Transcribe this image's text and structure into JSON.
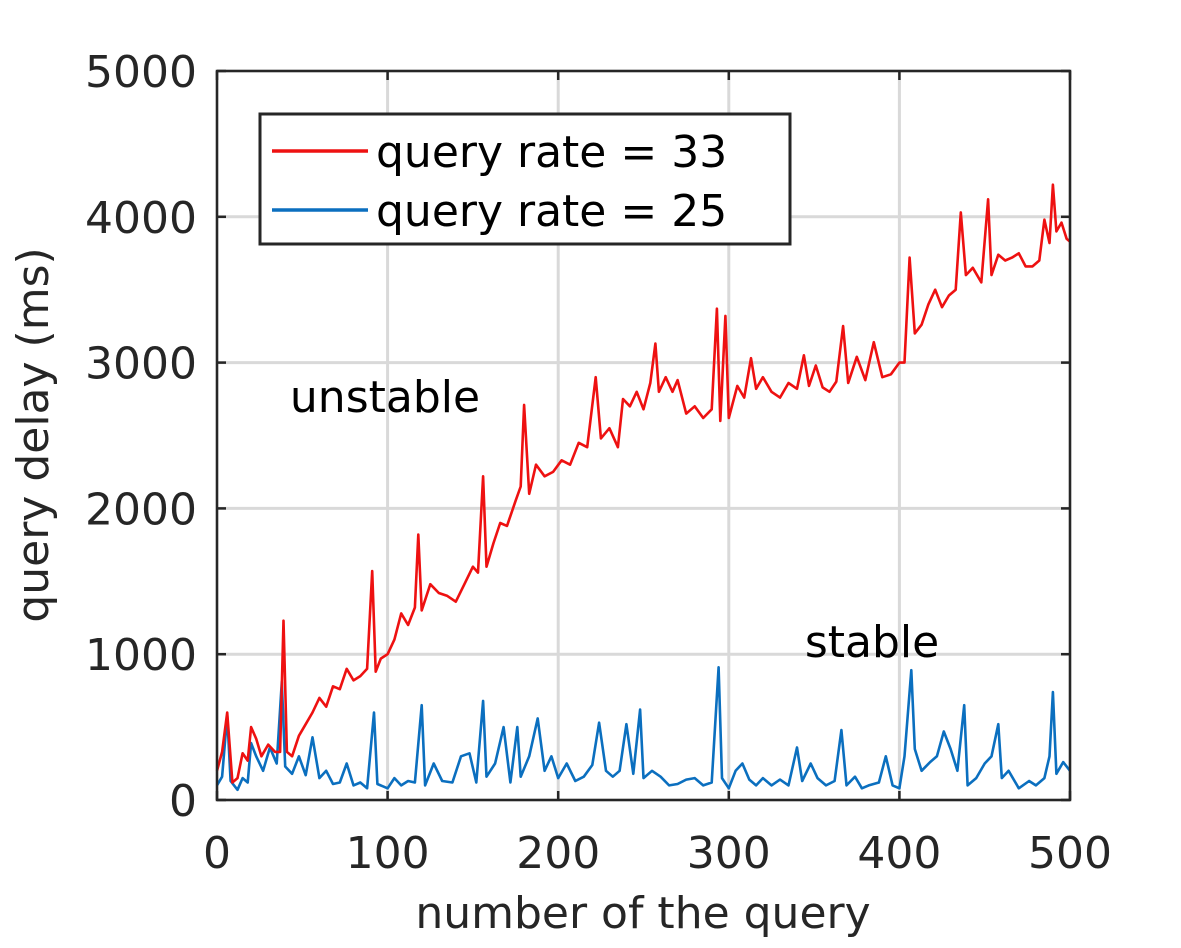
{
  "chart_data": {
    "type": "line",
    "title": "",
    "xlabel": "number of the query",
    "ylabel": "query delay (ms)",
    "xlim": [
      0,
      500
    ],
    "ylim": [
      0,
      5000
    ],
    "xticks": [
      0,
      100,
      200,
      300,
      400,
      500
    ],
    "yticks": [
      0,
      1000,
      2000,
      3000,
      4000,
      5000
    ],
    "xtick_labels": [
      "0",
      "100",
      "200",
      "300",
      "400",
      "500"
    ],
    "ytick_labels": [
      "0",
      "1000",
      "2000",
      "3000",
      "4000",
      "5000"
    ],
    "grid": true,
    "legend_position": "top-left",
    "annotations": [
      {
        "text": "unstable",
        "x": 100,
        "y": 2750
      },
      {
        "text": "stable",
        "x": 385,
        "y": 1080
      }
    ],
    "series": [
      {
        "name": "query rate = 33",
        "color": "#ee1111",
        "points": [
          [
            0,
            200
          ],
          [
            3,
            330
          ],
          [
            6,
            600
          ],
          [
            9,
            120
          ],
          [
            12,
            150
          ],
          [
            15,
            320
          ],
          [
            18,
            270
          ],
          [
            20,
            500
          ],
          [
            23,
            420
          ],
          [
            26,
            300
          ],
          [
            30,
            380
          ],
          [
            34,
            330
          ],
          [
            37,
            330
          ],
          [
            39,
            1230
          ],
          [
            41,
            330
          ],
          [
            44,
            300
          ],
          [
            48,
            440
          ],
          [
            52,
            520
          ],
          [
            56,
            600
          ],
          [
            60,
            700
          ],
          [
            64,
            640
          ],
          [
            68,
            780
          ],
          [
            72,
            760
          ],
          [
            76,
            900
          ],
          [
            80,
            820
          ],
          [
            84,
            850
          ],
          [
            88,
            900
          ],
          [
            91,
            1570
          ],
          [
            93,
            880
          ],
          [
            96,
            970
          ],
          [
            100,
            1000
          ],
          [
            104,
            1100
          ],
          [
            108,
            1280
          ],
          [
            112,
            1200
          ],
          [
            116,
            1320
          ],
          [
            118,
            1820
          ],
          [
            120,
            1300
          ],
          [
            125,
            1480
          ],
          [
            130,
            1420
          ],
          [
            135,
            1400
          ],
          [
            140,
            1360
          ],
          [
            145,
            1480
          ],
          [
            150,
            1600
          ],
          [
            153,
            1560
          ],
          [
            156,
            2220
          ],
          [
            158,
            1600
          ],
          [
            162,
            1760
          ],
          [
            166,
            1900
          ],
          [
            170,
            1880
          ],
          [
            175,
            2050
          ],
          [
            178,
            2150
          ],
          [
            180,
            2710
          ],
          [
            183,
            2100
          ],
          [
            187,
            2300
          ],
          [
            192,
            2220
          ],
          [
            197,
            2250
          ],
          [
            202,
            2330
          ],
          [
            207,
            2300
          ],
          [
            212,
            2450
          ],
          [
            217,
            2420
          ],
          [
            222,
            2900
          ],
          [
            225,
            2480
          ],
          [
            230,
            2550
          ],
          [
            235,
            2420
          ],
          [
            238,
            2750
          ],
          [
            242,
            2700
          ],
          [
            246,
            2800
          ],
          [
            250,
            2680
          ],
          [
            254,
            2860
          ],
          [
            257,
            3130
          ],
          [
            259,
            2800
          ],
          [
            263,
            2900
          ],
          [
            267,
            2800
          ],
          [
            270,
            2880
          ],
          [
            275,
            2650
          ],
          [
            280,
            2700
          ],
          [
            285,
            2620
          ],
          [
            290,
            2680
          ],
          [
            293,
            3370
          ],
          [
            295,
            2600
          ],
          [
            298,
            3320
          ],
          [
            300,
            2620
          ],
          [
            305,
            2840
          ],
          [
            309,
            2760
          ],
          [
            313,
            3030
          ],
          [
            316,
            2820
          ],
          [
            320,
            2900
          ],
          [
            325,
            2800
          ],
          [
            330,
            2760
          ],
          [
            335,
            2860
          ],
          [
            340,
            2820
          ],
          [
            344,
            3050
          ],
          [
            347,
            2840
          ],
          [
            351,
            2980
          ],
          [
            355,
            2830
          ],
          [
            359,
            2800
          ],
          [
            363,
            2870
          ],
          [
            367,
            3250
          ],
          [
            370,
            2860
          ],
          [
            375,
            3040
          ],
          [
            380,
            2880
          ],
          [
            385,
            3140
          ],
          [
            390,
            2900
          ],
          [
            395,
            2920
          ],
          [
            400,
            3000
          ],
          [
            403,
            3000
          ],
          [
            406,
            3720
          ],
          [
            409,
            3200
          ],
          [
            413,
            3260
          ],
          [
            417,
            3400
          ],
          [
            421,
            3500
          ],
          [
            425,
            3380
          ],
          [
            429,
            3460
          ],
          [
            433,
            3500
          ],
          [
            436,
            4030
          ],
          [
            439,
            3600
          ],
          [
            443,
            3650
          ],
          [
            448,
            3550
          ],
          [
            452,
            4120
          ],
          [
            454,
            3600
          ],
          [
            458,
            3740
          ],
          [
            462,
            3700
          ],
          [
            466,
            3720
          ],
          [
            470,
            3750
          ],
          [
            474,
            3660
          ],
          [
            478,
            3660
          ],
          [
            482,
            3700
          ],
          [
            485,
            3980
          ],
          [
            488,
            3820
          ],
          [
            490,
            4220
          ],
          [
            492,
            3900
          ],
          [
            495,
            3960
          ],
          [
            498,
            3850
          ],
          [
            500,
            3830
          ]
        ]
      },
      {
        "name": "query rate = 25",
        "color": "#0b6fbf",
        "points": [
          [
            0,
            100
          ],
          [
            3,
            160
          ],
          [
            6,
            580
          ],
          [
            8,
            130
          ],
          [
            12,
            70
          ],
          [
            15,
            150
          ],
          [
            18,
            120
          ],
          [
            20,
            390
          ],
          [
            23,
            300
          ],
          [
            27,
            200
          ],
          [
            31,
            360
          ],
          [
            35,
            250
          ],
          [
            38,
            810
          ],
          [
            40,
            230
          ],
          [
            44,
            180
          ],
          [
            48,
            300
          ],
          [
            52,
            170
          ],
          [
            56,
            430
          ],
          [
            60,
            150
          ],
          [
            64,
            200
          ],
          [
            68,
            110
          ],
          [
            72,
            120
          ],
          [
            76,
            250
          ],
          [
            80,
            100
          ],
          [
            84,
            120
          ],
          [
            88,
            80
          ],
          [
            92,
            600
          ],
          [
            94,
            110
          ],
          [
            100,
            80
          ],
          [
            104,
            150
          ],
          [
            108,
            100
          ],
          [
            112,
            130
          ],
          [
            116,
            120
          ],
          [
            120,
            650
          ],
          [
            122,
            100
          ],
          [
            127,
            250
          ],
          [
            132,
            130
          ],
          [
            138,
            120
          ],
          [
            143,
            300
          ],
          [
            148,
            320
          ],
          [
            152,
            120
          ],
          [
            156,
            680
          ],
          [
            158,
            160
          ],
          [
            163,
            250
          ],
          [
            168,
            500
          ],
          [
            172,
            120
          ],
          [
            176,
            500
          ],
          [
            178,
            160
          ],
          [
            183,
            300
          ],
          [
            188,
            560
          ],
          [
            192,
            200
          ],
          [
            196,
            300
          ],
          [
            200,
            150
          ],
          [
            205,
            250
          ],
          [
            210,
            130
          ],
          [
            215,
            160
          ],
          [
            220,
            240
          ],
          [
            224,
            530
          ],
          [
            228,
            200
          ],
          [
            232,
            160
          ],
          [
            236,
            200
          ],
          [
            240,
            520
          ],
          [
            244,
            180
          ],
          [
            248,
            620
          ],
          [
            250,
            150
          ],
          [
            255,
            200
          ],
          [
            260,
            160
          ],
          [
            265,
            100
          ],
          [
            270,
            110
          ],
          [
            275,
            140
          ],
          [
            280,
            150
          ],
          [
            285,
            100
          ],
          [
            290,
            120
          ],
          [
            294,
            910
          ],
          [
            296,
            150
          ],
          [
            300,
            80
          ],
          [
            304,
            200
          ],
          [
            308,
            250
          ],
          [
            312,
            140
          ],
          [
            316,
            100
          ],
          [
            320,
            150
          ],
          [
            325,
            100
          ],
          [
            330,
            140
          ],
          [
            335,
            100
          ],
          [
            340,
            360
          ],
          [
            343,
            130
          ],
          [
            348,
            250
          ],
          [
            352,
            150
          ],
          [
            357,
            100
          ],
          [
            362,
            130
          ],
          [
            366,
            480
          ],
          [
            369,
            100
          ],
          [
            374,
            160
          ],
          [
            378,
            80
          ],
          [
            382,
            100
          ],
          [
            388,
            120
          ],
          [
            392,
            300
          ],
          [
            396,
            100
          ],
          [
            400,
            80
          ],
          [
            403,
            300
          ],
          [
            407,
            890
          ],
          [
            409,
            350
          ],
          [
            413,
            200
          ],
          [
            418,
            260
          ],
          [
            422,
            300
          ],
          [
            426,
            470
          ],
          [
            430,
            350
          ],
          [
            434,
            200
          ],
          [
            438,
            650
          ],
          [
            440,
            100
          ],
          [
            445,
            150
          ],
          [
            450,
            250
          ],
          [
            454,
            300
          ],
          [
            458,
            520
          ],
          [
            460,
            150
          ],
          [
            464,
            200
          ],
          [
            470,
            80
          ],
          [
            476,
            130
          ],
          [
            480,
            100
          ],
          [
            485,
            150
          ],
          [
            488,
            300
          ],
          [
            490,
            740
          ],
          [
            492,
            180
          ],
          [
            496,
            260
          ],
          [
            500,
            200
          ]
        ]
      }
    ]
  }
}
